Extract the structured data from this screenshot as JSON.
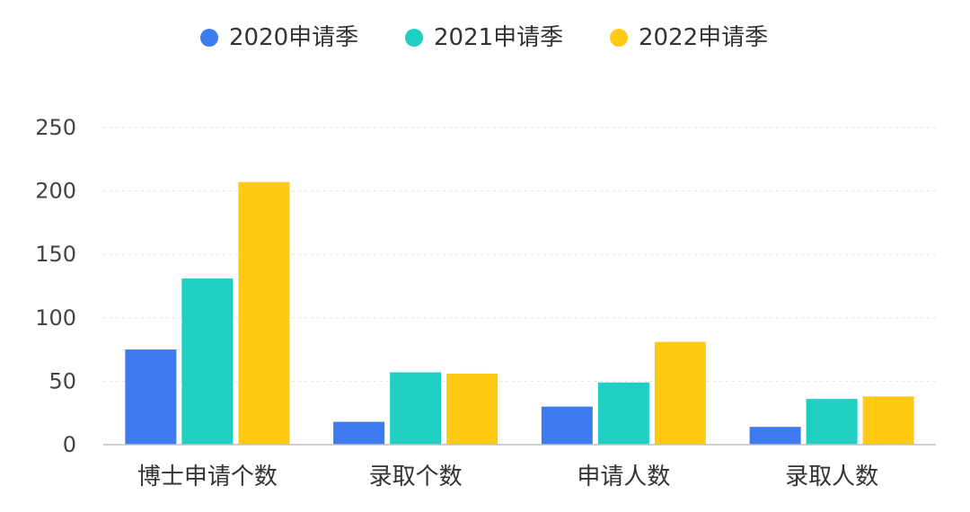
{
  "chart_data": {
    "type": "bar",
    "categories": [
      "博士申请个数",
      "录取个数",
      "申请人数",
      "录取人数"
    ],
    "series": [
      {
        "name": "2020申请季",
        "color": "#3f7bf0",
        "values": [
          75,
          18,
          30,
          14
        ]
      },
      {
        "name": "2021申请季",
        "color": "#1fd0c2",
        "values": [
          131,
          57,
          49,
          36
        ]
      },
      {
        "name": "2022申请季",
        "color": "#ffc914",
        "values": [
          207,
          56,
          81,
          38
        ]
      }
    ],
    "yticks": [
      0,
      50,
      100,
      150,
      200,
      250
    ],
    "ylim": [
      0,
      250
    ],
    "grid": true,
    "legend_position": "top-center"
  }
}
